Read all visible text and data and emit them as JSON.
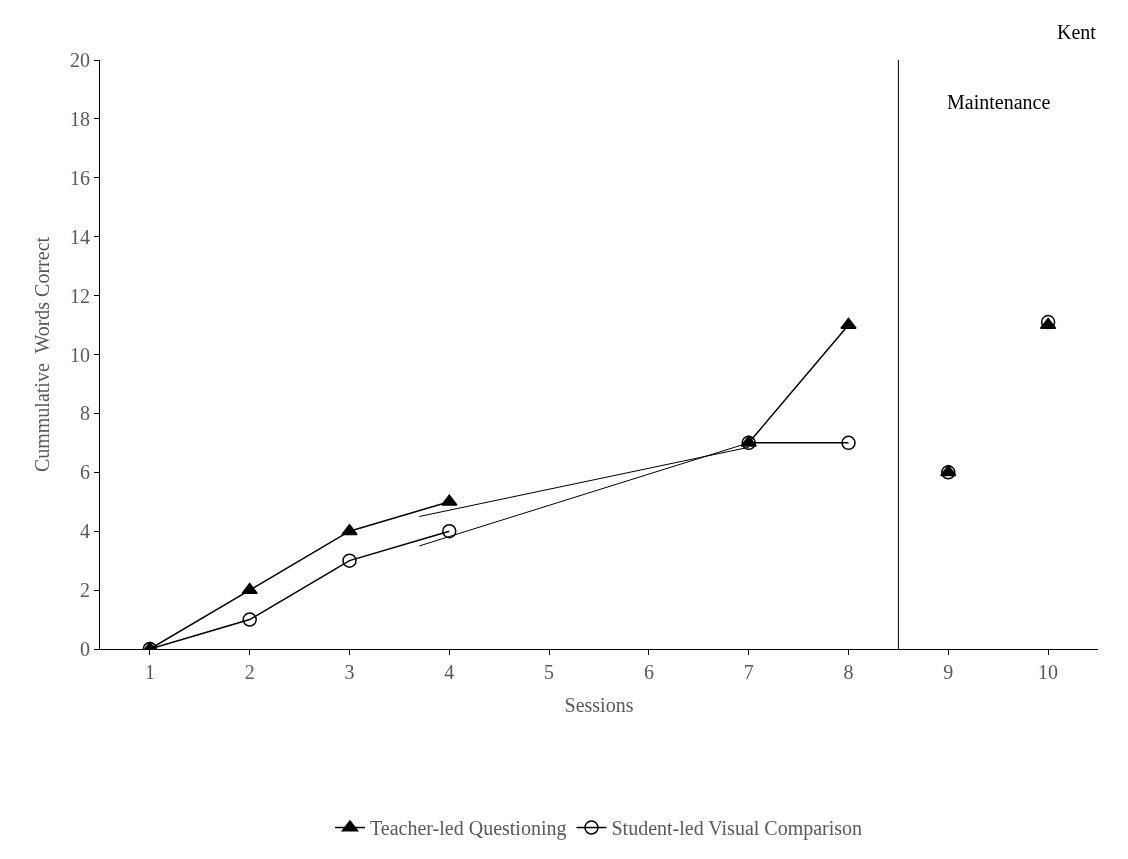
{
  "chart_data": {
    "type": "line",
    "xlabel": "Sessions",
    "ylabel": "Cummulative  Words Correct",
    "xlim": [
      0.5,
      10.5
    ],
    "xticks": [
      1,
      2,
      3,
      4,
      5,
      6,
      7,
      8,
      9,
      10
    ],
    "ylim": [
      0,
      20
    ],
    "yticks": [
      0,
      2,
      4,
      6,
      8,
      10,
      12,
      14,
      16,
      18,
      20
    ],
    "legend": "bottom",
    "series": [
      {
        "name": "Teacher-led Questioning",
        "color": "#000000",
        "marker": "triangle",
        "x": [
          1,
          2,
          3,
          4,
          5,
          6,
          7,
          8
        ],
        "values": [
          0,
          2,
          4,
          5,
          null,
          null,
          7,
          11
        ]
      },
      {
        "name": "Student-led Visual Comparison",
        "color": "#000000",
        "marker": "circle",
        "x": [
          1,
          2,
          3,
          4,
          5,
          6,
          7,
          8
        ],
        "values": [
          0,
          1,
          3,
          4,
          null,
          null,
          7,
          7
        ]
      },
      {
        "type": "scatter",
        "color": "#000000",
        "marker": "triangle",
        "x": [
          9,
          10
        ],
        "values": [
          6,
          11
        ]
      },
      {
        "type": "scatter",
        "color": "#000000",
        "marker": "circle",
        "x": [
          9,
          10
        ],
        "values": [
          6,
          11.1
        ]
      },
      {
        "type": "line",
        "color": "#000000",
        "marker": "none",
        "x": [
          3.7,
          7
        ],
        "values": [
          4.5,
          6.85
        ]
      },
      {
        "type": "line",
        "color": "#000000",
        "marker": "none",
        "x": [
          3.7,
          7
        ],
        "values": [
          3.5,
          7.0
        ]
      }
    ],
    "ref_lines": [
      {
        "axis": "x",
        "value": 8.5,
        "label": "Maintenance",
        "color": "#000000"
      }
    ],
    "annotations": [
      "Kent"
    ]
  }
}
